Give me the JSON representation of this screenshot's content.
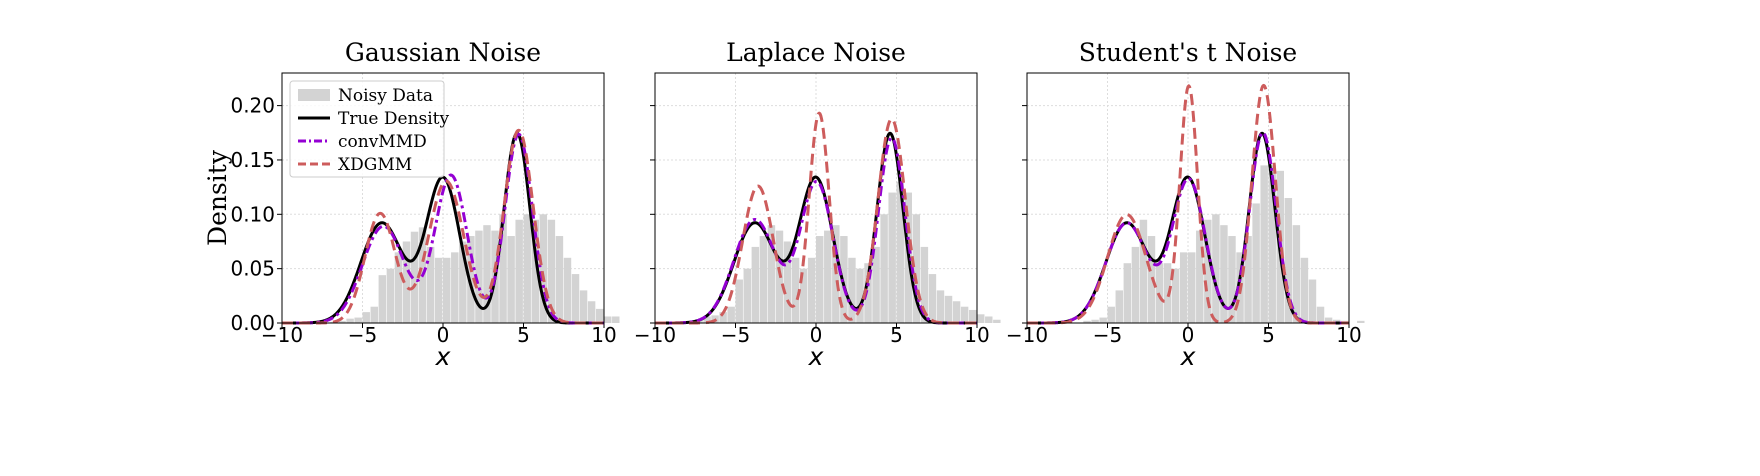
{
  "colors": {
    "histogram": "#d3d3d3",
    "true_density": "#000000",
    "convMMD": "#9400d3",
    "XDGMM": "#cd5c5c",
    "grid": "#dddddd"
  },
  "chart_data": [
    {
      "type": "line",
      "title": "Gaussian Noise",
      "xlabel": "x",
      "ylabel": "Density",
      "xlim": [
        -10,
        10
      ],
      "ylim": [
        0,
        0.23
      ],
      "xticks": [
        "−10",
        "−5",
        "0",
        "5",
        "10"
      ],
      "yticks": [
        "0.00",
        "0.05",
        "0.10",
        "0.15",
        "0.20"
      ],
      "grid": true,
      "legend": {
        "placement": "top-left",
        "entries": [
          "Noisy Data",
          "True Density",
          "convMMD",
          "XDGMM"
        ]
      },
      "histogram": {
        "bin_start": -10,
        "bin_width": 0.5,
        "values": [
          0,
          0,
          0,
          0,
          0,
          0,
          0.001,
          0.002,
          0.004,
          0.005,
          0.01,
          0.015,
          0.044,
          0.05,
          0.065,
          0.075,
          0.084,
          0.088,
          0.07,
          0.06,
          0.06,
          0.065,
          0.075,
          0.08,
          0.085,
          0.09,
          0.085,
          0.1,
          0.08,
          0.095,
          0.1,
          0.095,
          0.1,
          0.095,
          0.08,
          0.06,
          0.045,
          0.03,
          0.02,
          0.013,
          0.006,
          0.006,
          0,
          0
        ]
      },
      "series": [
        {
          "name": "True Density",
          "style": "solid",
          "components": [
            [
              0.3,
              -3.8,
              1.3
            ],
            [
              0.35,
              0,
              1.05
            ],
            [
              0.35,
              4.6,
              0.8
            ]
          ]
        },
        {
          "name": "convMMD",
          "style": "dashdot",
          "components": [
            [
              0.29,
              -3.7,
              1.3
            ],
            [
              0.34,
              0.5,
              1.0
            ],
            [
              0.37,
              4.7,
              0.85
            ]
          ]
        },
        {
          "name": "XDGMM",
          "style": "dashed",
          "components": [
            [
              0.24,
              -3.9,
              0.95
            ],
            [
              0.36,
              0.2,
              1.1
            ],
            [
              0.4,
              4.7,
              0.9
            ]
          ]
        }
      ]
    },
    {
      "type": "line",
      "title": "Laplace Noise",
      "xlabel": "x",
      "ylabel": "",
      "xlim": [
        -10,
        10
      ],
      "ylim": [
        0,
        0.23
      ],
      "xticks": [
        "−10",
        "−5",
        "0",
        "5",
        "10"
      ],
      "yticks": [],
      "grid": true,
      "histogram": {
        "bin_start": -10,
        "bin_width": 0.5,
        "values": [
          0,
          0,
          0,
          0.001,
          0.002,
          0.003,
          0.006,
          0.007,
          0.01,
          0.015,
          0.04,
          0.05,
          0.07,
          0.08,
          0.09,
          0.085,
          0.075,
          0.06,
          0.05,
          0.06,
          0.08,
          0.085,
          0.09,
          0.08,
          0.06,
          0.05,
          0.055,
          0.07,
          0.1,
          0.12,
          0.13,
          0.12,
          0.1,
          0.07,
          0.045,
          0.03,
          0.025,
          0.02,
          0.015,
          0.012,
          0.008,
          0.006,
          0.003,
          0
        ]
      },
      "series": [
        {
          "name": "True Density",
          "style": "solid",
          "components": [
            [
              0.3,
              -3.8,
              1.3
            ],
            [
              0.35,
              0,
              1.05
            ],
            [
              0.35,
              4.6,
              0.8
            ]
          ]
        },
        {
          "name": "convMMD",
          "style": "dashdot",
          "components": [
            [
              0.31,
              -3.8,
              1.3
            ],
            [
              0.33,
              0.05,
              1.02
            ],
            [
              0.35,
              4.7,
              0.82
            ]
          ]
        },
        {
          "name": "XDGMM",
          "style": "dashed",
          "components": [
            [
              0.3,
              -3.6,
              0.95
            ],
            [
              0.3,
              0.2,
              0.62
            ],
            [
              0.4,
              4.7,
              0.85
            ]
          ]
        }
      ]
    },
    {
      "type": "line",
      "title": "Student's t Noise",
      "xlabel": "x",
      "ylabel": "",
      "xlim": [
        -10,
        10
      ],
      "ylim": [
        0,
        0.23
      ],
      "xticks": [
        "−10",
        "−5",
        "0",
        "5",
        "10"
      ],
      "yticks": [],
      "grid": true,
      "histogram": {
        "bin_start": -10,
        "bin_width": 0.5,
        "values": [
          0,
          0,
          0,
          0,
          0,
          0,
          0,
          0.002,
          0.003,
          0.005,
          0.015,
          0.03,
          0.055,
          0.07,
          0.095,
          0.08,
          0.055,
          0.055,
          0.05,
          0.065,
          0.065,
          0.085,
          0.095,
          0.1,
          0.09,
          0.08,
          0.065,
          0.08,
          0.11,
          0.145,
          0.145,
          0.14,
          0.115,
          0.09,
          0.06,
          0.04,
          0.015,
          0.005,
          0.003,
          0.002,
          0,
          0.002,
          0,
          0
        ]
      },
      "series": [
        {
          "name": "True Density",
          "style": "solid",
          "components": [
            [
              0.3,
              -3.8,
              1.3
            ],
            [
              0.35,
              0,
              1.05
            ],
            [
              0.35,
              4.6,
              0.8
            ]
          ]
        },
        {
          "name": "convMMD",
          "style": "dashdot",
          "components": [
            [
              0.3,
              -3.8,
              1.3
            ],
            [
              0.34,
              0.05,
              1.03
            ],
            [
              0.36,
              4.65,
              0.82
            ]
          ]
        },
        {
          "name": "XDGMM",
          "style": "dashed",
          "components": [
            [
              0.3,
              -3.8,
              1.2
            ],
            [
              0.3,
              0.05,
              0.55
            ],
            [
              0.4,
              4.7,
              0.73
            ]
          ]
        }
      ]
    }
  ]
}
